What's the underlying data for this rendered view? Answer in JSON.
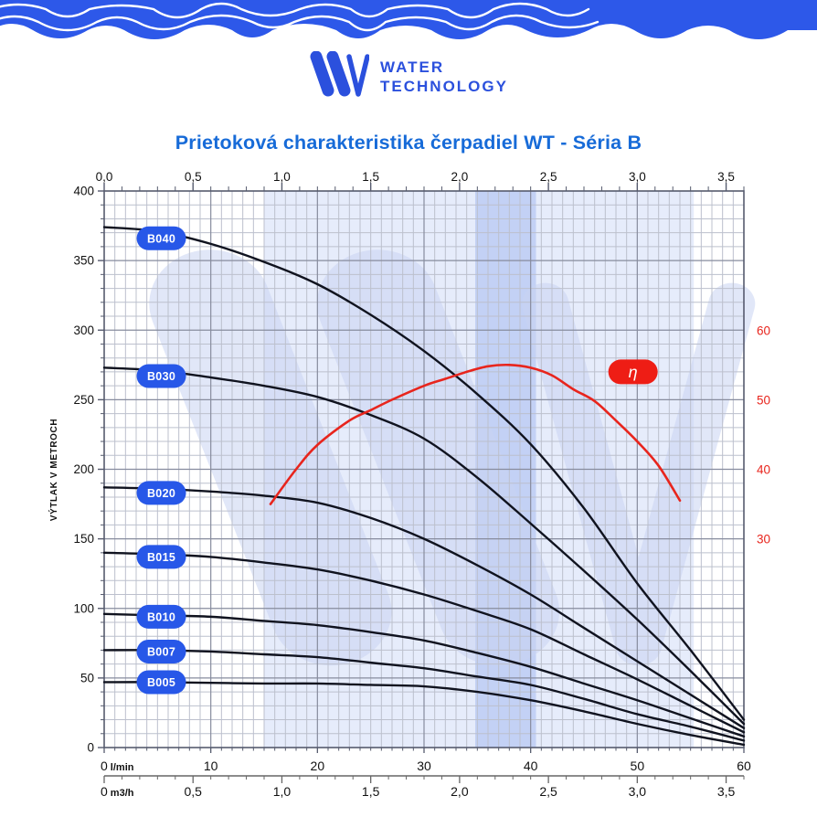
{
  "header": {
    "band_color": "#2d58e9",
    "wave_line_color": "#ffffff"
  },
  "logo": {
    "line1": "WATER",
    "line2": "TECHNOLOGY",
    "color": "#2b50dd"
  },
  "title": "Prietoková charakteristika čerpadiel WT - Séria B",
  "chart_data": {
    "type": "line",
    "title": "Prietoková charakteristika čerpadiel WT - Séria B",
    "grid": true,
    "colors": {
      "curve": "#10131f",
      "efficiency": "#e8251d",
      "pill_blue": "#2757e8",
      "pill_red": "#ee1d15",
      "band_light": "rgba(210,221,248,0.55)",
      "band_dark": "rgba(172,192,242,0.60)",
      "grid_minor": "#bcc0cd",
      "grid_major": "#878c9e",
      "border": "#565b6e"
    },
    "y_left": {
      "title": "VÝTLAK V METROCH",
      "min": 0,
      "max": 400,
      "major_step": 50,
      "minor_step": 10,
      "ticks": [
        {
          "v": 0,
          "label": "0"
        },
        {
          "v": 50,
          "label": "50"
        },
        {
          "v": 100,
          "label": "100"
        },
        {
          "v": 150,
          "label": "150"
        },
        {
          "v": 200,
          "label": "200"
        },
        {
          "v": 250,
          "label": "250"
        },
        {
          "v": 300,
          "label": "300"
        },
        {
          "v": 350,
          "label": "350"
        },
        {
          "v": 400,
          "label": "400"
        }
      ]
    },
    "y_right": {
      "name": "efficiency-percent",
      "ticks": [
        {
          "v": 30,
          "label": "30"
        },
        {
          "v": 40,
          "label": "40"
        },
        {
          "v": 50,
          "label": "50"
        },
        {
          "v": 60,
          "label": "60"
        }
      ]
    },
    "x_top": {
      "unit": "m3/h",
      "min": 0,
      "max": 3.6,
      "major_step": 0.5,
      "minor_step": 0.1,
      "ticks": [
        {
          "v": 0,
          "label": "0,0"
        },
        {
          "v": 0.5,
          "label": "0,5"
        },
        {
          "v": 1,
          "label": "1,0"
        },
        {
          "v": 1.5,
          "label": "1,5"
        },
        {
          "v": 2,
          "label": "2,0"
        },
        {
          "v": 2.5,
          "label": "2,5"
        },
        {
          "v": 3,
          "label": "3,0"
        },
        {
          "v": 3.5,
          "label": "3,5"
        }
      ]
    },
    "x_lmin": {
      "unit_label": "0 l/min",
      "min": 0,
      "max": 60,
      "major_step": 10,
      "minor_step": 1,
      "ticks": [
        {
          "v": 10,
          "label": "10"
        },
        {
          "v": 20,
          "label": "20"
        },
        {
          "v": 30,
          "label": "30"
        },
        {
          "v": 40,
          "label": "40"
        },
        {
          "v": 50,
          "label": "50"
        },
        {
          "v": 60,
          "label": "60"
        }
      ]
    },
    "x_m3h": {
      "unit_label": "0 m3/h",
      "min": 0,
      "max": 3.6,
      "major_step": 0.5,
      "minor_step": 0.1,
      "ticks": [
        {
          "v": 0.5,
          "label": "0,5"
        },
        {
          "v": 1,
          "label": "1,0"
        },
        {
          "v": 1.5,
          "label": "1,5"
        },
        {
          "v": 2,
          "label": "2,0"
        },
        {
          "v": 2.5,
          "label": "2,5"
        },
        {
          "v": 3,
          "label": "3,0"
        },
        {
          "v": 3.5,
          "label": "3,5"
        }
      ]
    },
    "bands": [
      {
        "name": "recommended-range",
        "from_lmin": 15.0,
        "to_lmin": 55.3,
        "shade": "light"
      },
      {
        "name": "optimal-range",
        "from_lmin": 34.8,
        "to_lmin": 40.5,
        "shade": "dark"
      }
    ],
    "series": [
      {
        "name": "B040",
        "pill": {
          "q": 5.36,
          "head_m": 366
        },
        "points": [
          [
            0,
            374
          ],
          [
            5,
            371
          ],
          [
            10,
            362
          ],
          [
            15,
            349
          ],
          [
            20,
            333
          ],
          [
            25,
            311
          ],
          [
            30,
            285
          ],
          [
            35,
            254
          ],
          [
            40,
            218
          ],
          [
            45,
            172
          ],
          [
            50,
            118
          ],
          [
            55,
            70
          ],
          [
            60,
            20
          ]
        ]
      },
      {
        "name": "B030",
        "pill": {
          "q": 5.36,
          "head_m": 267
        },
        "points": [
          [
            0,
            273
          ],
          [
            5,
            271
          ],
          [
            10,
            266
          ],
          [
            15,
            260
          ],
          [
            20,
            252
          ],
          [
            25,
            239
          ],
          [
            30,
            222
          ],
          [
            35,
            194
          ],
          [
            40,
            161
          ],
          [
            45,
            127
          ],
          [
            50,
            92
          ],
          [
            55,
            55
          ],
          [
            60,
            17
          ]
        ]
      },
      {
        "name": "B020",
        "pill": {
          "q": 5.36,
          "head_m": 183
        },
        "points": [
          [
            0,
            187
          ],
          [
            5,
            186
          ],
          [
            10,
            184
          ],
          [
            15,
            181
          ],
          [
            20,
            176
          ],
          [
            25,
            165
          ],
          [
            30,
            150
          ],
          [
            35,
            131
          ],
          [
            40,
            110
          ],
          [
            45,
            86
          ],
          [
            50,
            62
          ],
          [
            55,
            38
          ],
          [
            60,
            14
          ]
        ]
      },
      {
        "name": "B015",
        "pill": {
          "q": 5.36,
          "head_m": 137
        },
        "points": [
          [
            0,
            140
          ],
          [
            5,
            139
          ],
          [
            10,
            137
          ],
          [
            15,
            133
          ],
          [
            20,
            128
          ],
          [
            25,
            120
          ],
          [
            30,
            110
          ],
          [
            35,
            98
          ],
          [
            40,
            85
          ],
          [
            45,
            67
          ],
          [
            50,
            49
          ],
          [
            55,
            30
          ],
          [
            60,
            11
          ]
        ]
      },
      {
        "name": "B010",
        "pill": {
          "q": 5.36,
          "head_m": 94
        },
        "points": [
          [
            0,
            96
          ],
          [
            5,
            95
          ],
          [
            10,
            94
          ],
          [
            15,
            91
          ],
          [
            20,
            88
          ],
          [
            25,
            83
          ],
          [
            30,
            77
          ],
          [
            35,
            68
          ],
          [
            40,
            58
          ],
          [
            45,
            46
          ],
          [
            50,
            34
          ],
          [
            55,
            21
          ],
          [
            60,
            8
          ]
        ]
      },
      {
        "name": "B007",
        "pill": {
          "q": 5.36,
          "head_m": 69
        },
        "points": [
          [
            0,
            70
          ],
          [
            5,
            70
          ],
          [
            10,
            69
          ],
          [
            15,
            67
          ],
          [
            20,
            65
          ],
          [
            25,
            61
          ],
          [
            30,
            57
          ],
          [
            35,
            51
          ],
          [
            40,
            45
          ],
          [
            45,
            35
          ],
          [
            50,
            24
          ],
          [
            55,
            15
          ],
          [
            60,
            5
          ]
        ]
      },
      {
        "name": "B005",
        "pill": {
          "q": 5.36,
          "head_m": 47
        },
        "points": [
          [
            0,
            47
          ],
          [
            5,
            47
          ],
          [
            10,
            46.5
          ],
          [
            15,
            46
          ],
          [
            20,
            46
          ],
          [
            25,
            45
          ],
          [
            30,
            44
          ],
          [
            35,
            40
          ],
          [
            40,
            34
          ],
          [
            45,
            26
          ],
          [
            50,
            17
          ],
          [
            55,
            9
          ],
          [
            60,
            2
          ]
        ]
      }
    ],
    "efficiency": {
      "label": "η",
      "pill": {
        "q": 49.6,
        "pct": 54
      },
      "points_pct": [
        [
          15.6,
          35
        ],
        [
          18,
          40
        ],
        [
          20,
          43.5
        ],
        [
          23,
          47
        ],
        [
          25,
          48.5
        ],
        [
          27,
          50
        ],
        [
          30,
          52
        ],
        [
          32,
          53
        ],
        [
          34,
          54
        ],
        [
          36,
          54.8
        ],
        [
          38,
          55
        ],
        [
          40,
          54.6
        ],
        [
          42,
          53.5
        ],
        [
          44,
          51.5
        ],
        [
          46,
          49.8
        ],
        [
          48,
          47
        ],
        [
          50,
          44
        ],
        [
          52,
          40.5
        ],
        [
          54,
          35.5
        ]
      ]
    }
  }
}
